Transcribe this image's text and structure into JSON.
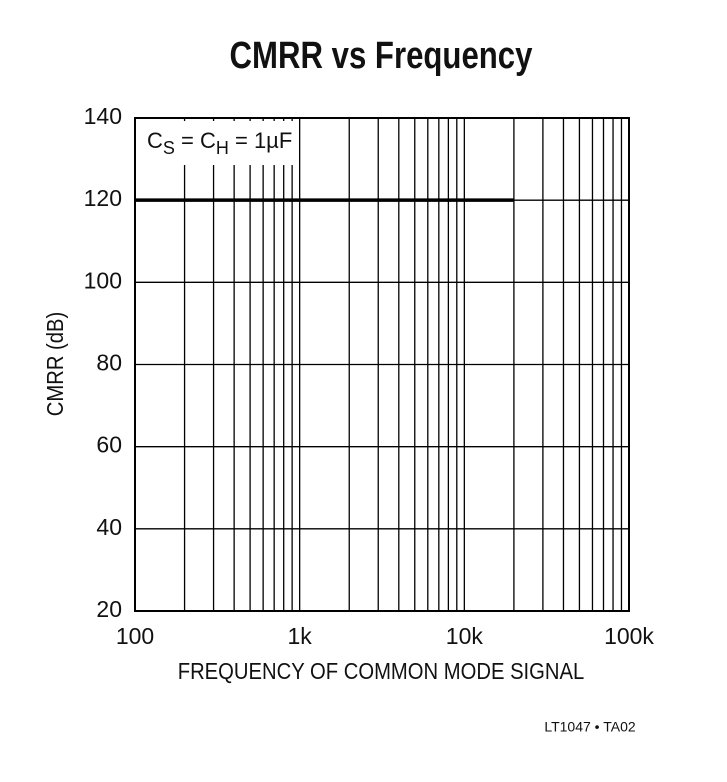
{
  "chart_data": {
    "type": "line",
    "title": "CMRR vs Frequency",
    "x_label": "FREQUENCY OF COMMON MODE SIGNAL",
    "y_label": "CMRR (dB)",
    "annotation": [
      {
        "text": "C"
      },
      {
        "text": "S",
        "sub": true
      },
      {
        "text": " = C"
      },
      {
        "text": "H",
        "sub": true
      },
      {
        "text": " = 1µF"
      }
    ],
    "footer": "LT1047 • TA02",
    "xscale": "log",
    "xlim": [
      100,
      100000
    ],
    "ylim": [
      20,
      140
    ],
    "xticks": [
      100,
      {
        "value": 1000,
        "label": "1k"
      },
      {
        "value": 10000,
        "label": "10k"
      },
      {
        "value": 100000,
        "label": "100k"
      }
    ],
    "xminorticks": [
      200,
      300,
      400,
      500,
      600,
      700,
      800,
      900,
      2000,
      3000,
      4000,
      5000,
      6000,
      7000,
      8000,
      9000,
      20000,
      30000,
      40000,
      50000,
      60000,
      70000,
      80000,
      90000
    ],
    "yticks": [
      20,
      40,
      60,
      80,
      100,
      120,
      140
    ],
    "grid": true,
    "series": [
      {
        "color": "#000000",
        "x": [
          100,
          20000
        ],
        "values": [
          120,
          120
        ]
      }
    ]
  }
}
